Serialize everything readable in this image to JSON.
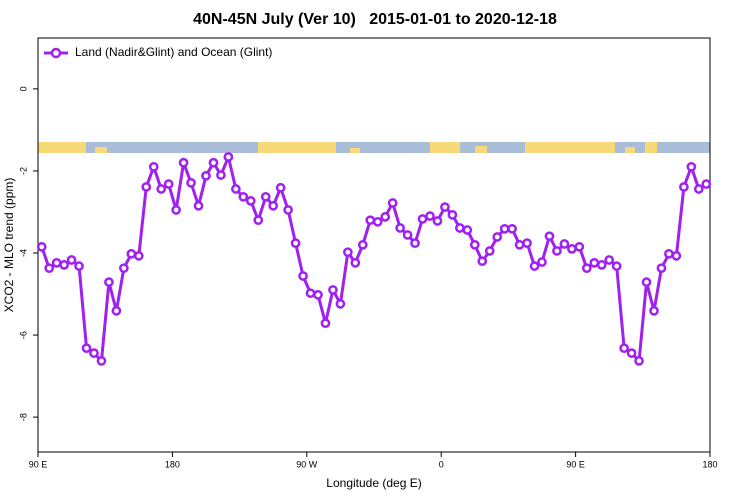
{
  "chart_data": {
    "type": "line",
    "title": "40N-45N July (Ver 10)   2015-01-01 to 2020-12-18",
    "x_label": "Longitude (deg E)",
    "y_label": "XCO2 - MLO trend (ppm)",
    "xlim": [
      90,
      540
    ],
    "ylim": [
      -8.85,
      1.24
    ],
    "xticks": [
      {
        "value": 90,
        "label": "90 E"
      },
      180,
      {
        "value": 270,
        "label": "90 W"
      },
      {
        "value": 360,
        "label": "0"
      },
      {
        "value": 450,
        "label": "90 E"
      },
      {
        "value": 540,
        "label": "180"
      }
    ],
    "yticks": [
      0,
      -2,
      -4,
      -6,
      -8
    ],
    "legend": "top-left",
    "x": [
      92.5,
      97.5,
      102.5,
      107.5,
      112.5,
      117.5,
      122.5,
      127.5,
      132.5,
      137.5,
      142.5,
      147.5,
      152.5,
      157.5,
      162.5,
      167.5,
      172.5,
      177.5,
      182.5,
      187.5,
      192.5,
      197.5,
      202.5,
      207.5,
      212.5,
      217.5,
      222.5,
      227.5,
      232.5,
      237.5,
      242.5,
      247.5,
      252.5,
      257.5,
      262.5,
      267.5,
      272.5,
      277.5,
      282.5,
      287.5,
      292.5,
      297.5,
      302.5,
      307.5,
      312.5,
      317.5,
      322.5,
      327.5,
      332.5,
      337.5,
      342.5,
      347.5,
      352.5,
      357.5,
      362.5,
      367.5,
      372.5,
      377.5,
      382.5,
      387.5,
      392.5,
      397.5,
      402.5,
      407.5,
      412.5,
      417.5,
      422.5,
      427.5,
      432.5,
      437.5,
      442.5,
      447.5,
      452.5,
      457.5,
      462.5,
      467.5,
      472.5,
      477.5,
      482.5,
      487.5,
      492.5,
      497.5,
      502.5,
      507.5,
      512.5,
      517.5,
      522.5,
      527.5,
      532.5,
      537.5
    ],
    "series": [
      {
        "name": "Land (Nadir&Glint) and Ocean (Glint)",
        "color": "#a020f0",
        "values": [
          -3.85,
          -4.37,
          -4.24,
          -4.29,
          -4.17,
          -4.32,
          -6.32,
          -6.44,
          -6.63,
          -4.71,
          -5.41,
          -4.37,
          -4.02,
          -4.07,
          -2.39,
          -1.9,
          -2.44,
          -2.32,
          -2.95,
          -1.8,
          -2.29,
          -2.85,
          -2.12,
          -1.8,
          -2.1,
          -1.66,
          -2.44,
          -2.63,
          -2.73,
          -3.2,
          -2.63,
          -2.85,
          -2.41,
          -2.95,
          -3.76,
          -4.56,
          -4.98,
          -5.02,
          -5.71,
          -4.9,
          -5.24,
          -3.98,
          -4.24,
          -3.8,
          -3.2,
          -3.24,
          -3.12,
          -2.78,
          -3.39,
          -3.56,
          -3.76,
          -3.17,
          -3.1,
          -3.22,
          -2.88,
          -3.07,
          -3.39,
          -3.44,
          -3.8,
          -4.2,
          -3.95,
          -3.61,
          -3.41,
          -3.41,
          -3.8,
          -3.76,
          -4.32,
          -4.22,
          -3.59,
          -3.95,
          -3.78,
          -3.9,
          -3.85,
          -4.37,
          -4.24,
          -4.29,
          -4.17,
          -4.32,
          -6.32,
          -6.44,
          -6.63,
          -4.71,
          -5.41,
          -4.37,
          -4.02,
          -4.07,
          -2.39,
          -1.9,
          -2.44,
          -2.32
        ]
      }
    ]
  }
}
